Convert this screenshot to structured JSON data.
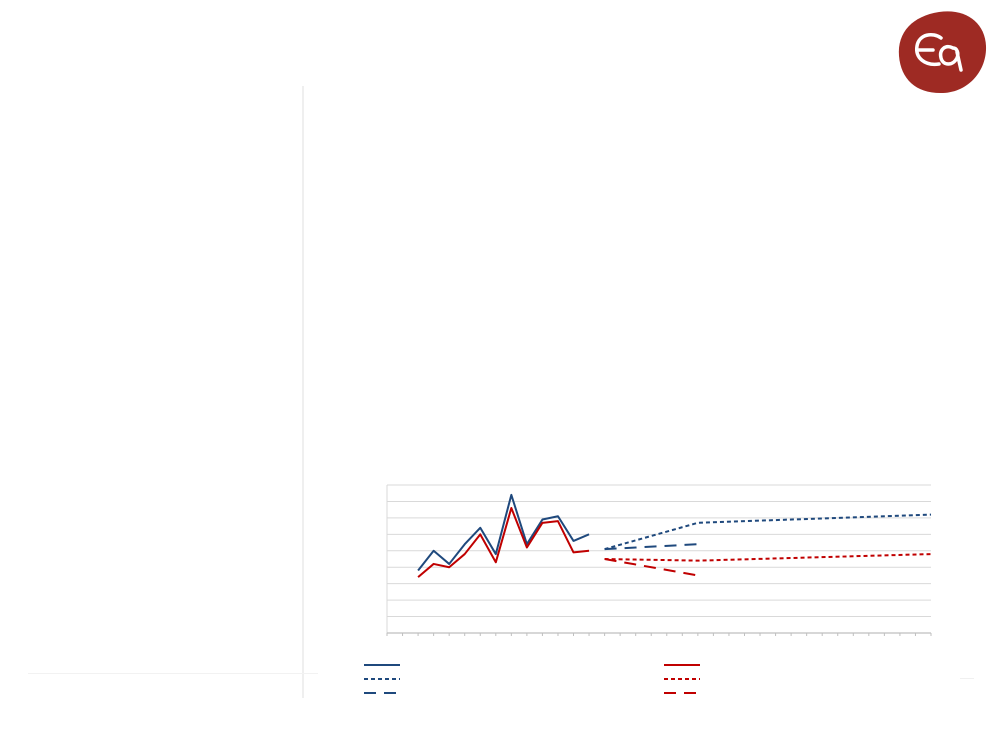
{
  "slide": {
    "logo_text": "Eq",
    "logo_color": "#9e2a23",
    "blue_color": "#1f497d",
    "red_color": "#c00000",
    "grid_color": "#d9d9d9",
    "axis_color": "#bfbfbf"
  },
  "chart_data": {
    "type": "line",
    "title": "",
    "xlabel": "",
    "ylabel": "",
    "ylim": [
      0,
      9
    ],
    "x_tick_count": 35,
    "grid": "horizontal",
    "legend_position": "bottom",
    "series": [
      {
        "color": "#1f497d",
        "style": "solid",
        "points": [
          [
            2,
            3.8
          ],
          [
            3,
            5.0
          ],
          [
            4,
            4.2
          ],
          [
            5,
            5.4
          ],
          [
            6,
            6.4
          ],
          [
            7,
            4.8
          ],
          [
            8,
            8.4
          ],
          [
            9,
            5.4
          ],
          [
            10,
            6.9
          ],
          [
            11,
            7.1
          ],
          [
            12,
            5.6
          ],
          [
            13,
            6.0
          ]
        ]
      },
      {
        "color": "#1f497d",
        "style": "dotted",
        "points": [
          [
            14,
            5.1
          ],
          [
            20,
            6.7
          ],
          [
            35,
            7.2
          ]
        ]
      },
      {
        "color": "#1f497d",
        "style": "dashed",
        "points": [
          [
            14,
            5.1
          ],
          [
            20,
            5.4
          ]
        ]
      },
      {
        "color": "#c00000",
        "style": "solid",
        "points": [
          [
            2,
            3.4
          ],
          [
            3,
            4.2
          ],
          [
            4,
            4.0
          ],
          [
            5,
            4.8
          ],
          [
            6,
            6.0
          ],
          [
            7,
            4.3
          ],
          [
            8,
            7.6
          ],
          [
            9,
            5.2
          ],
          [
            10,
            6.7
          ],
          [
            11,
            6.8
          ],
          [
            12,
            4.9
          ],
          [
            13,
            5.0
          ]
        ]
      },
      {
        "color": "#c00000",
        "style": "dotted",
        "points": [
          [
            14,
            4.5
          ],
          [
            20,
            4.4
          ],
          [
            35,
            4.8
          ]
        ]
      },
      {
        "color": "#c00000",
        "style": "dashed",
        "points": [
          [
            14,
            4.5
          ],
          [
            20,
            3.5
          ]
        ]
      }
    ]
  }
}
